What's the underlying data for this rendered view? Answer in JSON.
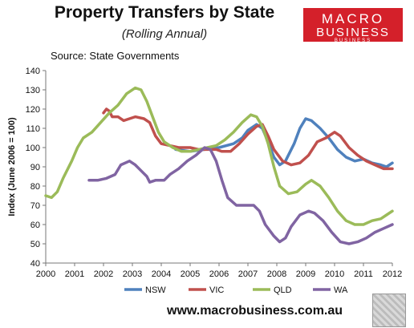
{
  "chart_data": {
    "type": "line",
    "title": "Property Transfers by State",
    "subtitle": "(Rolling Annual)",
    "source": "Source: State Governments",
    "ylabel": "Index (June 2006 = 100)",
    "xlabel": "",
    "xlim": [
      2000,
      2012
    ],
    "ylim": [
      40,
      140
    ],
    "x_ticks": [
      "2000",
      "2001",
      "2002",
      "2003",
      "2004",
      "2005",
      "2006",
      "2007",
      "2008",
      "2009",
      "2010",
      "2011",
      "2012"
    ],
    "y_ticks": [
      "40",
      "50",
      "60",
      "70",
      "80",
      "90",
      "100",
      "110",
      "120",
      "130",
      "140"
    ],
    "grid": false,
    "legend": "bottom",
    "series": [
      {
        "name": "NSW",
        "color": "#4f81bd",
        "points": [
          [
            2004.5,
            99
          ],
          [
            2005,
            98
          ],
          [
            2005.5,
            99
          ],
          [
            2006,
            100
          ],
          [
            2006.5,
            102
          ],
          [
            2006.8,
            105
          ],
          [
            2007,
            109
          ],
          [
            2007.3,
            112
          ],
          [
            2007.5,
            110
          ],
          [
            2007.7,
            103
          ],
          [
            2007.9,
            95
          ],
          [
            2008.1,
            91
          ],
          [
            2008.3,
            93
          ],
          [
            2008.6,
            102
          ],
          [
            2008.8,
            110
          ],
          [
            2009,
            115
          ],
          [
            2009.2,
            114
          ],
          [
            2009.5,
            110
          ],
          [
            2009.8,
            105
          ],
          [
            2010.1,
            99
          ],
          [
            2010.4,
            95
          ],
          [
            2010.7,
            93
          ],
          [
            2011,
            94
          ],
          [
            2011.3,
            92
          ],
          [
            2011.6,
            91
          ],
          [
            2011.8,
            90
          ],
          [
            2012,
            92
          ]
        ]
      },
      {
        "name": "VIC",
        "color": "#c0504d",
        "points": [
          [
            2002,
            118
          ],
          [
            2002.1,
            120
          ],
          [
            2002.2,
            119
          ],
          [
            2002.3,
            116
          ],
          [
            2002.5,
            116
          ],
          [
            2002.7,
            114
          ],
          [
            2002.9,
            115
          ],
          [
            2003.1,
            116
          ],
          [
            2003.4,
            115
          ],
          [
            2003.6,
            113
          ],
          [
            2003.8,
            106
          ],
          [
            2004,
            102
          ],
          [
            2004.3,
            101
          ],
          [
            2004.6,
            100
          ],
          [
            2005,
            100
          ],
          [
            2005.3,
            99
          ],
          [
            2005.6,
            99
          ],
          [
            2005.9,
            99
          ],
          [
            2006.1,
            98
          ],
          [
            2006.4,
            98
          ],
          [
            2006.7,
            102
          ],
          [
            2007,
            107
          ],
          [
            2007.3,
            111
          ],
          [
            2007.5,
            112
          ],
          [
            2007.7,
            106
          ],
          [
            2007.9,
            99
          ],
          [
            2008.2,
            93
          ],
          [
            2008.5,
            91
          ],
          [
            2008.8,
            92
          ],
          [
            2009.1,
            96
          ],
          [
            2009.4,
            103
          ],
          [
            2009.7,
            105
          ],
          [
            2010,
            108
          ],
          [
            2010.2,
            106
          ],
          [
            2010.5,
            100
          ],
          [
            2010.8,
            96
          ],
          [
            2011.1,
            93
          ],
          [
            2011.4,
            91
          ],
          [
            2011.7,
            89
          ],
          [
            2012,
            89
          ]
        ]
      },
      {
        "name": "QLD",
        "color": "#9bbb59",
        "points": [
          [
            2000,
            75
          ],
          [
            2000.2,
            74
          ],
          [
            2000.4,
            77
          ],
          [
            2000.6,
            84
          ],
          [
            2000.9,
            93
          ],
          [
            2001.1,
            100
          ],
          [
            2001.3,
            105
          ],
          [
            2001.6,
            108
          ],
          [
            2001.9,
            113
          ],
          [
            2002.2,
            118
          ],
          [
            2002.5,
            122
          ],
          [
            2002.8,
            128
          ],
          [
            2003.1,
            131
          ],
          [
            2003.3,
            130
          ],
          [
            2003.5,
            124
          ],
          [
            2003.7,
            116
          ],
          [
            2003.9,
            108
          ],
          [
            2004.1,
            103
          ],
          [
            2004.4,
            100
          ],
          [
            2004.7,
            98
          ],
          [
            2005,
            98
          ],
          [
            2005.3,
            99
          ],
          [
            2005.6,
            100
          ],
          [
            2005.9,
            101
          ],
          [
            2006.2,
            104
          ],
          [
            2006.5,
            108
          ],
          [
            2006.8,
            113
          ],
          [
            2007.1,
            117
          ],
          [
            2007.3,
            116
          ],
          [
            2007.5,
            111
          ],
          [
            2007.7,
            102
          ],
          [
            2007.9,
            90
          ],
          [
            2008.1,
            80
          ],
          [
            2008.4,
            76
          ],
          [
            2008.7,
            77
          ],
          [
            2009,
            81
          ],
          [
            2009.2,
            83
          ],
          [
            2009.5,
            80
          ],
          [
            2009.8,
            74
          ],
          [
            2010.1,
            67
          ],
          [
            2010.4,
            62
          ],
          [
            2010.7,
            60
          ],
          [
            2011,
            60
          ],
          [
            2011.3,
            62
          ],
          [
            2011.6,
            63
          ],
          [
            2011.8,
            65
          ],
          [
            2012,
            67
          ]
        ]
      },
      {
        "name": "WA",
        "color": "#8064a2",
        "points": [
          [
            2001.5,
            83
          ],
          [
            2001.8,
            83
          ],
          [
            2002.1,
            84
          ],
          [
            2002.4,
            86
          ],
          [
            2002.6,
            91
          ],
          [
            2002.9,
            93
          ],
          [
            2003.1,
            91
          ],
          [
            2003.3,
            88
          ],
          [
            2003.5,
            85
          ],
          [
            2003.6,
            82
          ],
          [
            2003.8,
            83
          ],
          [
            2004.1,
            83
          ],
          [
            2004.3,
            86
          ],
          [
            2004.6,
            89
          ],
          [
            2004.9,
            93
          ],
          [
            2005.2,
            96
          ],
          [
            2005.5,
            100
          ],
          [
            2005.7,
            99
          ],
          [
            2005.9,
            93
          ],
          [
            2006.1,
            83
          ],
          [
            2006.3,
            74
          ],
          [
            2006.6,
            70
          ],
          [
            2006.9,
            70
          ],
          [
            2007.2,
            70
          ],
          [
            2007.4,
            67
          ],
          [
            2007.6,
            60
          ],
          [
            2007.9,
            54
          ],
          [
            2008.1,
            51
          ],
          [
            2008.3,
            53
          ],
          [
            2008.5,
            59
          ],
          [
            2008.8,
            65
          ],
          [
            2009.1,
            67
          ],
          [
            2009.3,
            66
          ],
          [
            2009.6,
            62
          ],
          [
            2009.9,
            56
          ],
          [
            2010.2,
            51
          ],
          [
            2010.5,
            50
          ],
          [
            2010.8,
            51
          ],
          [
            2011.1,
            53
          ],
          [
            2011.4,
            56
          ],
          [
            2011.7,
            58
          ],
          [
            2012,
            60
          ]
        ]
      }
    ]
  },
  "branding": {
    "logo_line1": "MACRO",
    "logo_line2": "BUSINESS",
    "logo_line3": "BUSINESS",
    "url": "www.macrobusiness.com.au"
  }
}
